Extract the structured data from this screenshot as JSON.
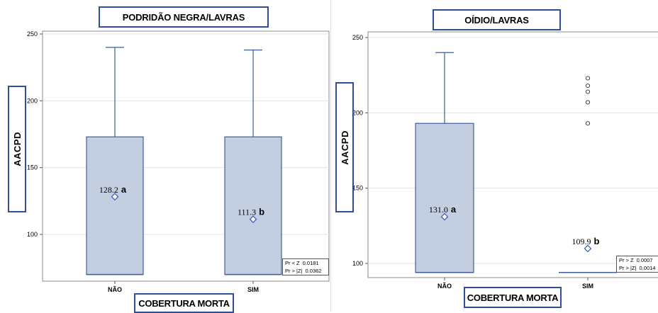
{
  "chart_data": [
    {
      "type": "boxplot",
      "title": "PODRIDÃO NEGRA/LAVRAS",
      "ylabel": "AACPD",
      "xlabel": "COBERTURA MORTA",
      "ylim": [
        70,
        255
      ],
      "yticks": [
        100,
        150,
        200,
        250
      ],
      "grid": true,
      "categories": [
        "NÃO",
        "SIM"
      ],
      "boxes": [
        {
          "category": "NÃO",
          "whisker_low": 70,
          "q1": 70,
          "median": 70,
          "q3": 173,
          "whisker_high": 240,
          "mean": 128.2,
          "mean_label": "128.2",
          "group_letter": "a",
          "outliers": []
        },
        {
          "category": "SIM",
          "whisker_low": 70,
          "q1": 70,
          "median": 70,
          "q3": 173,
          "whisker_high": 238,
          "mean": 111.3,
          "mean_label": "111.3",
          "group_letter": "b",
          "outliers": []
        }
      ],
      "stats": [
        {
          "label": "Pr < Z",
          "value": "0.0181"
        },
        {
          "label": "Pr > |Z|",
          "value": "0.0362"
        }
      ]
    },
    {
      "type": "boxplot",
      "title": "OÍDIO/LAVRAS",
      "ylabel": "AACPD",
      "xlabel": "COBERTURA MORTA",
      "ylim": [
        94,
        252
      ],
      "yticks": [
        100,
        150,
        200,
        250
      ],
      "grid": true,
      "categories": [
        "NÃO",
        "SIM"
      ],
      "boxes": [
        {
          "category": "NÃO",
          "whisker_low": 94,
          "q1": 94,
          "median": 94,
          "q3": 193,
          "whisker_high": 240,
          "mean": 131.0,
          "mean_label": "131.0",
          "group_letter": "a",
          "outliers": []
        },
        {
          "category": "SIM",
          "whisker_low": 94,
          "q1": 94,
          "median": 94,
          "q3": 94,
          "whisker_high": 94,
          "mean": 109.9,
          "mean_label": "109.9",
          "group_letter": "b",
          "outliers": [
            193,
            207,
            214,
            218,
            223
          ]
        }
      ],
      "stats": [
        {
          "label": "Pr > Z",
          "value": "0.0007"
        },
        {
          "label": "Pr > |Z|",
          "value": "0.0014"
        }
      ]
    }
  ],
  "colors": {
    "box_fill": "#c3cfe0",
    "box_stroke": "#3f5d9a",
    "frame": "#2e4f9c",
    "grid": "#e3e3e3"
  }
}
